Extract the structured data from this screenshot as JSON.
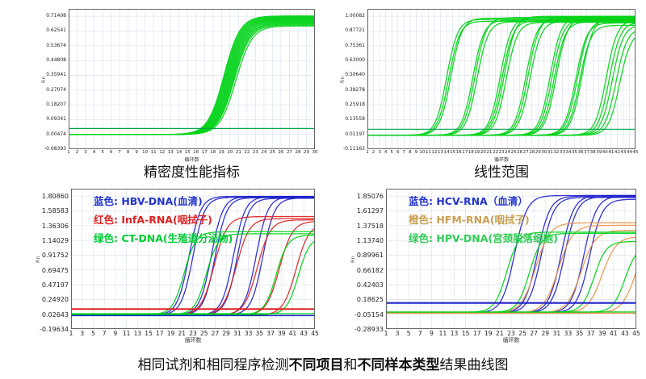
{
  "titles": {
    "top_left": "精密度性能指标",
    "top_right": "线性范围"
  },
  "caption": {
    "seg1": "相同试剂和相同程序检测",
    "bold1": "不同项目",
    "seg2": "和",
    "bold2": "不同样本类型",
    "seg3": "结果曲线图"
  },
  "colors": {
    "green": "#00D216",
    "green_dark": "#00A44C",
    "blue": "#2222CC",
    "red": "#DD2222",
    "orange": "#E8964A",
    "grid": "#dde3f0",
    "axis": "#666666"
  },
  "chart_data": [
    {
      "id": "precision",
      "type": "line",
      "title": "精密度性能指标",
      "xlabel": "循环数",
      "ylabel": "Rn",
      "xmin": 1,
      "xmax": 30,
      "xtick_step": 1,
      "ymin": -0.08393,
      "ymax": 0.75841,
      "yticks": [
        "0.71408",
        "0.62541",
        "0.53674",
        "0.44808",
        "0.35941",
        "0.27074",
        "0.18207",
        "0.09341",
        "0.00474",
        "-0.08393"
      ],
      "curves": [
        {
          "c": "green",
          "ct": 19.3,
          "p": 0.716,
          "b": 0.004,
          "k": 1.05
        },
        {
          "c": "green",
          "ct": 19.4,
          "p": 0.712,
          "b": 0.004,
          "k": 1.05
        },
        {
          "c": "green",
          "ct": 19.5,
          "p": 0.708,
          "b": 0.004,
          "k": 1.05
        },
        {
          "c": "green",
          "ct": 19.6,
          "p": 0.704,
          "b": 0.004,
          "k": 1.05
        },
        {
          "c": "green",
          "ct": 19.7,
          "p": 0.7,
          "b": 0.004,
          "k": 1.05
        },
        {
          "c": "green",
          "ct": 19.8,
          "p": 0.696,
          "b": 0.004,
          "k": 1.05
        },
        {
          "c": "green",
          "ct": 19.9,
          "p": 0.692,
          "b": 0.004,
          "k": 1.05
        },
        {
          "c": "green",
          "ct": 20.0,
          "p": 0.688,
          "b": 0.004,
          "k": 1.05
        },
        {
          "c": "green",
          "ct": 20.1,
          "p": 0.683,
          "b": 0.004,
          "k": 1.05
        },
        {
          "c": "green",
          "ct": 20.2,
          "p": 0.678,
          "b": 0.004,
          "k": 1.05
        },
        {
          "c": "green",
          "ct": 20.3,
          "p": 0.673,
          "b": 0.004,
          "k": 1.05
        },
        {
          "c": "green",
          "ct": 20.4,
          "p": 0.668,
          "b": 0.004,
          "k": 1.05
        },
        {
          "c": "green",
          "ct": 20.5,
          "p": 0.662,
          "b": 0.004,
          "k": 1.05
        },
        {
          "c": "green",
          "ct": 20.7,
          "p": 0.656,
          "b": 0.004,
          "k": 1.05
        }
      ],
      "thresholds": [
        {
          "c": "green_dark",
          "y": 0.04,
          "w": 1.2
        }
      ]
    },
    {
      "id": "linearity",
      "type": "line",
      "title": "线性范围",
      "xlabel": "循环数",
      "ylabel": "Rn",
      "xmin": 1,
      "xmax": 45,
      "xtick_step": 1,
      "ymin": -0.11163,
      "ymax": 1.06262,
      "yticks": [
        "1.00082",
        "0.87721",
        "0.75361",
        "0.63000",
        "0.50640",
        "0.38278",
        "0.25918",
        "0.13558",
        "0.01197",
        "-0.11163"
      ],
      "curves": [
        {
          "c": "green",
          "ct": 14.0,
          "p": 0.975,
          "b": 0.005,
          "k": 1.1
        },
        {
          "c": "green",
          "ct": 14.35,
          "p": 0.96,
          "b": 0.005,
          "k": 1.1
        },
        {
          "c": "green",
          "ct": 14.7,
          "p": 0.985,
          "b": 0.005,
          "k": 1.1
        },
        {
          "c": "green",
          "ct": 18.3,
          "p": 0.97,
          "b": 0.005,
          "k": 1.1
        },
        {
          "c": "green",
          "ct": 18.65,
          "p": 0.99,
          "b": 0.005,
          "k": 1.1
        },
        {
          "c": "green",
          "ct": 19.0,
          "p": 0.955,
          "b": 0.005,
          "k": 1.1
        },
        {
          "c": "green",
          "ct": 22.8,
          "p": 0.99,
          "b": 0.005,
          "k": 1.1
        },
        {
          "c": "green",
          "ct": 23.1,
          "p": 0.965,
          "b": 0.005,
          "k": 1.1
        },
        {
          "c": "green",
          "ct": 23.45,
          "p": 1.0,
          "b": 0.005,
          "k": 1.1
        },
        {
          "c": "green",
          "ct": 23.8,
          "p": 0.95,
          "b": 0.005,
          "k": 1.1
        },
        {
          "c": "green",
          "ct": 27.0,
          "p": 0.98,
          "b": 0.005,
          "k": 1.1
        },
        {
          "c": "green",
          "ct": 27.35,
          "p": 0.995,
          "b": 0.005,
          "k": 1.1
        },
        {
          "c": "green",
          "ct": 27.7,
          "p": 0.96,
          "b": 0.005,
          "k": 1.1
        },
        {
          "c": "green",
          "ct": 31.0,
          "p": 1.0,
          "b": 0.005,
          "k": 1.1
        },
        {
          "c": "green",
          "ct": 31.3,
          "p": 0.975,
          "b": 0.005,
          "k": 1.1
        },
        {
          "c": "green",
          "ct": 31.65,
          "p": 0.955,
          "b": 0.005,
          "k": 1.1
        },
        {
          "c": "green",
          "ct": 32.0,
          "p": 0.99,
          "b": 0.005,
          "k": 1.1
        },
        {
          "c": "green",
          "ct": 35.2,
          "p": 0.945,
          "b": 0.005,
          "k": 1.1
        },
        {
          "c": "green",
          "ct": 35.5,
          "p": 0.97,
          "b": 0.005,
          "k": 1.1
        },
        {
          "c": "green",
          "ct": 35.85,
          "p": 0.925,
          "b": 0.005,
          "k": 1.1
        },
        {
          "c": "green",
          "ct": 36.2,
          "p": 0.99,
          "b": 0.005,
          "k": 1.1
        },
        {
          "c": "green",
          "ct": 40.2,
          "p": 0.97,
          "b": 0.005,
          "k": 1.1
        },
        {
          "c": "green",
          "ct": 40.7,
          "p": 0.95,
          "b": 0.005,
          "k": 1.1
        },
        {
          "c": "green",
          "ct": 41.2,
          "p": 0.93,
          "b": 0.005,
          "k": 1.1
        },
        {
          "c": "green",
          "ct": 41.8,
          "p": 0.9,
          "b": 0.005,
          "k": 1.1
        },
        {
          "c": "green",
          "ct": 42.4,
          "p": 0.87,
          "b": 0.005,
          "k": 1.1
        }
      ],
      "thresholds": [
        {
          "c": "green_dark",
          "y": 0.055,
          "w": 1.2
        }
      ]
    },
    {
      "id": "same-reagent-items",
      "type": "line",
      "title": "",
      "xlabel": "循环数",
      "ylabel": "Rn",
      "xmin": 1,
      "xmax": 45,
      "xtick_step": 2,
      "ymin": -0.19634,
      "ymax": 1.91999,
      "yticks": [
        "1.80860",
        "1.58583",
        "1.36306",
        "1.14029",
        "0.91752",
        "0.69475",
        "0.47197",
        "0.24920",
        "0.02643",
        "-0.19634"
      ],
      "legend": [
        {
          "label": "蓝色: HBV-DNA(血清)",
          "color": "#2233CC"
        },
        {
          "label": "红色: InfA-RNA(咽拭子)",
          "color": "#DD2222"
        },
        {
          "label": "绿色: CT-DNA(生殖道分泌物)",
          "color": "#00CC33"
        }
      ],
      "curves": [
        {
          "c": "blue",
          "ct": 22.3,
          "p": 1.805,
          "b": 0.015,
          "k": 0.95
        },
        {
          "c": "blue",
          "ct": 23.0,
          "p": 1.79,
          "b": 0.015,
          "k": 0.95
        },
        {
          "c": "blue",
          "ct": 26.3,
          "p": 1.8,
          "b": 0.015,
          "k": 0.95
        },
        {
          "c": "blue",
          "ct": 27.0,
          "p": 1.785,
          "b": 0.015,
          "k": 0.95
        },
        {
          "c": "blue",
          "ct": 30.3,
          "p": 1.8,
          "b": 0.015,
          "k": 0.95
        },
        {
          "c": "blue",
          "ct": 31.0,
          "p": 1.775,
          "b": 0.015,
          "k": 0.95
        },
        {
          "c": "blue",
          "ct": 34.4,
          "p": 1.8,
          "b": 0.015,
          "k": 0.95
        },
        {
          "c": "blue",
          "ct": 35.6,
          "p": 1.78,
          "b": 0.015,
          "k": 0.95
        },
        {
          "c": "red",
          "ct": 26.8,
          "p": 1.5,
          "b": 0.012,
          "k": 0.85
        },
        {
          "c": "red",
          "ct": 30.8,
          "p": 1.47,
          "b": 0.012,
          "k": 0.85
        },
        {
          "c": "red",
          "ct": 34.6,
          "p": 1.45,
          "b": 0.012,
          "k": 0.85
        },
        {
          "c": "red",
          "ct": 38.6,
          "p": 1.43,
          "b": 0.012,
          "k": 0.85
        },
        {
          "c": "red",
          "ct": 41.6,
          "p": 1.4,
          "b": 0.012,
          "k": 0.85
        },
        {
          "c": "green",
          "ct": 21.4,
          "p": 1.27,
          "b": 0.02,
          "k": 0.95
        },
        {
          "c": "green",
          "ct": 25.4,
          "p": 1.24,
          "b": 0.02,
          "k": 0.95
        },
        {
          "c": "green",
          "ct": 38.0,
          "p": 1.22,
          "b": 0.02,
          "k": 0.95
        },
        {
          "c": "green",
          "ct": 42.0,
          "p": 1.2,
          "b": 0.02,
          "k": 0.95
        }
      ],
      "thresholds": [
        {
          "c": "red",
          "y": 0.105,
          "w": 2
        },
        {
          "c": "green",
          "y": 0.035,
          "w": 1.3
        },
        {
          "c": "blue",
          "y": 0.005,
          "w": 1.5
        }
      ]
    },
    {
      "id": "same-reagent-samples",
      "type": "line",
      "title": "",
      "xlabel": "循环数",
      "ylabel": "Rn",
      "xmin": 1,
      "xmax": 45,
      "xtick_step": 2,
      "ymin": -0.28933,
      "ymax": 1.96966,
      "yticks": [
        "1.85076",
        "1.61297",
        "1.37518",
        "1.13740",
        "0.89961",
        "0.66182",
        "0.42403",
        "0.18625",
        "-0.05154",
        "-0.28933"
      ],
      "legend": [
        {
          "label": "蓝色: HCV-RNA（血清）",
          "color": "#2233CC"
        },
        {
          "label": "橙色: HFM-RNA(咽拭子)",
          "color": "#C9A052"
        },
        {
          "label": "绿色: HPV-DNA(宫颈脱落细胞)",
          "color": "#33CC55"
        }
      ],
      "curves": [
        {
          "c": "blue",
          "ct": 23.6,
          "p": 1.86,
          "b": -0.03,
          "k": 0.9
        },
        {
          "c": "blue",
          "ct": 27.6,
          "p": 1.85,
          "b": -0.03,
          "k": 0.9
        },
        {
          "c": "blue",
          "ct": 28.3,
          "p": 1.83,
          "b": -0.03,
          "k": 0.9
        },
        {
          "c": "blue",
          "ct": 31.8,
          "p": 1.86,
          "b": -0.03,
          "k": 0.9
        },
        {
          "c": "blue",
          "ct": 32.4,
          "p": 1.84,
          "b": -0.03,
          "k": 0.9
        },
        {
          "c": "blue",
          "ct": 35.8,
          "p": 1.85,
          "b": -0.03,
          "k": 0.9
        },
        {
          "c": "blue",
          "ct": 36.8,
          "p": 1.8,
          "b": -0.03,
          "k": 0.9
        },
        {
          "c": "orange",
          "ct": 27.3,
          "p": 1.42,
          "b": -0.03,
          "k": 0.8
        },
        {
          "c": "orange",
          "ct": 31.3,
          "p": 1.38,
          "b": -0.03,
          "k": 0.8
        },
        {
          "c": "orange",
          "ct": 35.3,
          "p": 1.3,
          "b": -0.03,
          "k": 0.8
        },
        {
          "c": "orange",
          "ct": 39.0,
          "p": 1.2,
          "b": -0.03,
          "k": 0.8
        },
        {
          "c": "orange",
          "ct": 45.0,
          "p": 1.3,
          "b": -0.03,
          "k": 0.8
        },
        {
          "c": "green",
          "ct": 22.2,
          "p": 1.27,
          "b": -0.02,
          "k": 0.95
        },
        {
          "c": "green",
          "ct": 26.2,
          "p": 1.25,
          "b": -0.02,
          "k": 0.95
        },
        {
          "c": "green",
          "ct": 37.6,
          "p": 1.12,
          "b": -0.02,
          "k": 0.95
        },
        {
          "c": "green",
          "ct": 43.0,
          "p": 1.05,
          "b": -0.02,
          "k": 0.95
        }
      ],
      "thresholds": [
        {
          "c": "blue",
          "y": 0.13,
          "w": 2.2
        },
        {
          "c": "green",
          "y": -0.015,
          "w": 1.3
        },
        {
          "c": "orange",
          "y": -0.035,
          "w": 1.3
        }
      ]
    }
  ]
}
